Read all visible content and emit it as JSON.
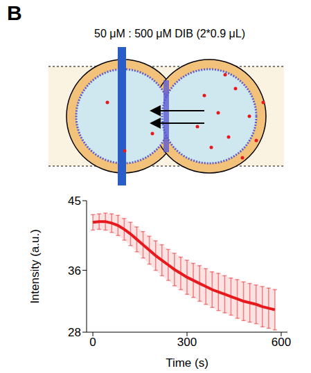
{
  "panel": "B",
  "chart_data": {
    "type": "line",
    "title": "50 μM : 500 μM DIB (2*0.9 μL)",
    "x_label": "Time (s)",
    "y_label": "Intensity (a.u.)",
    "x": [
      0,
      20,
      40,
      60,
      80,
      100,
      120,
      140,
      160,
      180,
      200,
      220,
      240,
      260,
      280,
      300,
      320,
      340,
      360,
      380,
      400,
      420,
      440,
      460,
      480,
      500,
      520,
      540,
      560,
      580
    ],
    "series": [
      {
        "color": "#e8191c",
        "values": [
          42.2,
          42.3,
          42.3,
          42.1,
          41.8,
          41.3,
          40.7,
          40.0,
          39.3,
          38.6,
          37.9,
          37.3,
          36.7,
          36.1,
          35.6,
          35.1,
          34.7,
          34.3,
          33.9,
          33.5,
          33.2,
          32.9,
          32.6,
          32.3,
          32.0,
          31.8,
          31.6,
          31.3,
          31.1,
          30.9
        ],
        "error": [
          1.0,
          1.0,
          1.1,
          1.2,
          1.3,
          1.4,
          1.5,
          1.6,
          1.7,
          1.8,
          1.9,
          2.0,
          2.0,
          2.1,
          2.1,
          2.2,
          2.2,
          2.3,
          2.3,
          2.3,
          2.4,
          2.4,
          2.4,
          2.5,
          2.5,
          2.5,
          2.5,
          2.6,
          2.6,
          2.6
        ]
      }
    ],
    "xlim": [
      -20,
      620
    ],
    "ylim": [
      28,
      45
    ],
    "xticks": [
      0,
      300,
      600
    ],
    "yticks": [
      28,
      36,
      45
    ]
  }
}
